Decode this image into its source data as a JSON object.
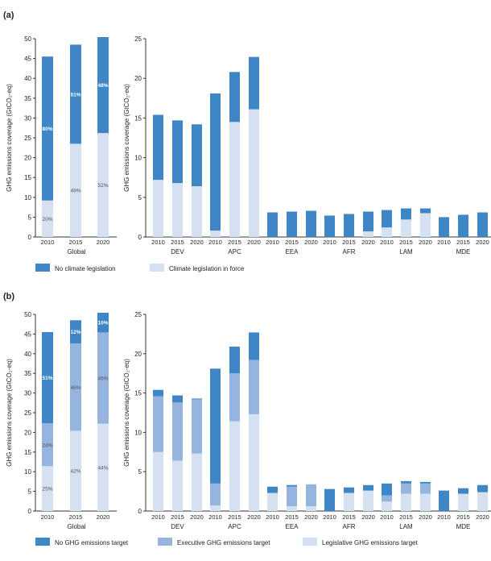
{
  "colors": {
    "dark": "#3f86c6",
    "mid": "#95b5de",
    "light": "#d5e0f1",
    "axis": "#333333",
    "text": "#222222"
  },
  "chart_data": [
    {
      "panel_label": "(a)",
      "type": "bar",
      "stacked": true,
      "ylabel": "GHG emissions coverage (GtCO₂-eq)",
      "legend": [
        {
          "name": "No climate legislation",
          "color": "dark"
        },
        {
          "name": "Climate legislation in force",
          "color": "light"
        }
      ],
      "global": {
        "group_label": "Global",
        "ylim": [
          0,
          50
        ],
        "yticks": [
          0,
          5,
          10,
          15,
          20,
          25,
          30,
          35,
          40,
          45,
          50
        ],
        "years": [
          "2010",
          "2015",
          "2020"
        ],
        "stacks": [
          [
            {
              "v": 9.2,
              "c": "light",
              "label": "20%"
            },
            {
              "v": 36.3,
              "c": "dark",
              "label": "80%"
            }
          ],
          [
            {
              "v": 23.5,
              "c": "light",
              "label": "49%"
            },
            {
              "v": 25.0,
              "c": "dark",
              "label": "51%"
            }
          ],
          [
            {
              "v": 26.2,
              "c": "light",
              "label": "52%"
            },
            {
              "v": 24.2,
              "c": "dark",
              "label": "48%"
            }
          ]
        ]
      },
      "regional": {
        "ylim": [
          0,
          25
        ],
        "yticks": [
          0,
          5,
          10,
          15,
          20,
          25
        ],
        "regions": [
          {
            "name": "DEV",
            "years": [
              "2010",
              "2015",
              "2020"
            ],
            "stacks": [
              [
                {
                  "v": 7.2,
                  "c": "light"
                },
                {
                  "v": 8.2,
                  "c": "dark"
                }
              ],
              [
                {
                  "v": 6.8,
                  "c": "light"
                },
                {
                  "v": 7.9,
                  "c": "dark"
                }
              ],
              [
                {
                  "v": 6.4,
                  "c": "light"
                },
                {
                  "v": 7.8,
                  "c": "dark"
                }
              ]
            ]
          },
          {
            "name": "APC",
            "years": [
              "2010",
              "2015",
              "2020"
            ],
            "stacks": [
              [
                {
                  "v": 0.8,
                  "c": "light"
                },
                {
                  "v": 17.3,
                  "c": "dark"
                }
              ],
              [
                {
                  "v": 14.5,
                  "c": "light"
                },
                {
                  "v": 6.3,
                  "c": "dark"
                }
              ],
              [
                {
                  "v": 16.1,
                  "c": "light"
                },
                {
                  "v": 6.6,
                  "c": "dark"
                }
              ]
            ]
          },
          {
            "name": "EEA",
            "years": [
              "2010",
              "2015",
              "2020"
            ],
            "stacks": [
              [
                {
                  "v": 3.1,
                  "c": "dark"
                }
              ],
              [
                {
                  "v": 3.2,
                  "c": "dark"
                }
              ],
              [
                {
                  "v": 3.3,
                  "c": "dark"
                }
              ]
            ]
          },
          {
            "name": "AFR",
            "years": [
              "2010",
              "2015",
              "2020"
            ],
            "stacks": [
              [
                {
                  "v": 2.7,
                  "c": "dark"
                }
              ],
              [
                {
                  "v": 2.9,
                  "c": "dark"
                }
              ],
              [
                {
                  "v": 0.7,
                  "c": "light"
                },
                {
                  "v": 2.5,
                  "c": "dark"
                }
              ]
            ]
          },
          {
            "name": "LAM",
            "years": [
              "2010",
              "2015",
              "2020"
            ],
            "stacks": [
              [
                {
                  "v": 1.2,
                  "c": "light"
                },
                {
                  "v": 2.2,
                  "c": "dark"
                }
              ],
              [
                {
                  "v": 2.2,
                  "c": "light"
                },
                {
                  "v": 1.4,
                  "c": "dark"
                }
              ],
              [
                {
                  "v": 3.0,
                  "c": "light"
                },
                {
                  "v": 0.6,
                  "c": "dark"
                }
              ]
            ]
          },
          {
            "name": "MDE",
            "years": [
              "2010",
              "2015",
              "2020"
            ],
            "stacks": [
              [
                {
                  "v": 2.5,
                  "c": "dark"
                }
              ],
              [
                {
                  "v": 2.8,
                  "c": "dark"
                }
              ],
              [
                {
                  "v": 3.1,
                  "c": "dark"
                }
              ]
            ]
          }
        ]
      }
    },
    {
      "panel_label": "(b)",
      "type": "bar",
      "stacked": true,
      "ylabel": "GHG emissions coverage (GtCO₂-eq)",
      "legend": [
        {
          "name": "No GHG emissions target",
          "color": "dark"
        },
        {
          "name": "Executive GHG emissions target",
          "color": "mid"
        },
        {
          "name": "Legislative GHG emissions target",
          "color": "light"
        }
      ],
      "global": {
        "group_label": "Global",
        "ylim": [
          0,
          50
        ],
        "yticks": [
          0,
          5,
          10,
          15,
          20,
          25,
          30,
          35,
          40,
          45,
          50
        ],
        "years": [
          "2010",
          "2015",
          "2020"
        ],
        "stacks": [
          [
            {
              "v": 11.4,
              "c": "light",
              "label": "25%"
            },
            {
              "v": 10.9,
              "c": "mid",
              "label": "24%"
            },
            {
              "v": 23.2,
              "c": "dark",
              "label": "51%"
            }
          ],
          [
            {
              "v": 20.4,
              "c": "light",
              "label": "42%"
            },
            {
              "v": 22.2,
              "c": "mid",
              "label": "46%"
            },
            {
              "v": 5.9,
              "c": "dark",
              "label": "12%"
            }
          ],
          [
            {
              "v": 22.2,
              "c": "light",
              "label": "44%"
            },
            {
              "v": 23.2,
              "c": "mid",
              "label": "46%"
            },
            {
              "v": 5.0,
              "c": "dark",
              "label": "10%"
            }
          ]
        ]
      },
      "regional": {
        "ylim": [
          0,
          25
        ],
        "yticks": [
          0,
          5,
          10,
          15,
          20,
          25
        ],
        "regions": [
          {
            "name": "DEV",
            "years": [
              "2010",
              "2015",
              "2020"
            ],
            "stacks": [
              [
                {
                  "v": 7.5,
                  "c": "light"
                },
                {
                  "v": 7.1,
                  "c": "mid"
                },
                {
                  "v": 0.8,
                  "c": "dark"
                }
              ],
              [
                {
                  "v": 6.4,
                  "c": "light"
                },
                {
                  "v": 7.4,
                  "c": "mid"
                },
                {
                  "v": 0.9,
                  "c": "dark"
                }
              ],
              [
                {
                  "v": 7.3,
                  "c": "light"
                },
                {
                  "v": 6.9,
                  "c": "mid"
                },
                {
                  "v": 0.1,
                  "c": "dark"
                }
              ]
            ]
          },
          {
            "name": "APC",
            "years": [
              "2010",
              "2015",
              "2020"
            ],
            "stacks": [
              [
                {
                  "v": 0.7,
                  "c": "light"
                },
                {
                  "v": 2.8,
                  "c": "mid"
                },
                {
                  "v": 14.6,
                  "c": "dark"
                }
              ],
              [
                {
                  "v": 11.4,
                  "c": "light"
                },
                {
                  "v": 6.1,
                  "c": "mid"
                },
                {
                  "v": 3.4,
                  "c": "dark"
                }
              ],
              [
                {
                  "v": 12.3,
                  "c": "light"
                },
                {
                  "v": 6.9,
                  "c": "mid"
                },
                {
                  "v": 3.5,
                  "c": "dark"
                }
              ]
            ]
          },
          {
            "name": "EEA",
            "years": [
              "2010",
              "2015",
              "2020"
            ],
            "stacks": [
              [
                {
                  "v": 2.3,
                  "c": "light"
                },
                {
                  "v": 0.8,
                  "c": "dark"
                }
              ],
              [
                {
                  "v": 0.6,
                  "c": "light"
                },
                {
                  "v": 2.5,
                  "c": "mid"
                },
                {
                  "v": 0.2,
                  "c": "dark"
                }
              ],
              [
                {
                  "v": 0.6,
                  "c": "light"
                },
                {
                  "v": 2.8,
                  "c": "mid"
                }
              ]
            ]
          },
          {
            "name": "AFR",
            "years": [
              "2010",
              "2015",
              "2020"
            ],
            "stacks": [
              [
                {
                  "v": 2.8,
                  "c": "dark"
                }
              ],
              [
                {
                  "v": 2.3,
                  "c": "light"
                },
                {
                  "v": 0.7,
                  "c": "dark"
                }
              ],
              [
                {
                  "v": 2.6,
                  "c": "light"
                },
                {
                  "v": 0.7,
                  "c": "dark"
                }
              ]
            ]
          },
          {
            "name": "LAM",
            "years": [
              "2010",
              "2015",
              "2020"
            ],
            "stacks": [
              [
                {
                  "v": 1.2,
                  "c": "light"
                },
                {
                  "v": 0.8,
                  "c": "mid"
                },
                {
                  "v": 1.5,
                  "c": "dark"
                }
              ],
              [
                {
                  "v": 2.2,
                  "c": "light"
                },
                {
                  "v": 1.3,
                  "c": "mid"
                },
                {
                  "v": 0.3,
                  "c": "dark"
                }
              ],
              [
                {
                  "v": 2.2,
                  "c": "light"
                },
                {
                  "v": 1.3,
                  "c": "mid"
                },
                {
                  "v": 0.2,
                  "c": "dark"
                }
              ]
            ]
          },
          {
            "name": "MDE",
            "years": [
              "2010",
              "2015",
              "2020"
            ],
            "stacks": [
              [
                {
                  "v": 2.6,
                  "c": "dark"
                }
              ],
              [
                {
                  "v": 2.2,
                  "c": "light"
                },
                {
                  "v": 0.7,
                  "c": "dark"
                }
              ],
              [
                {
                  "v": 2.4,
                  "c": "light"
                },
                {
                  "v": 0.9,
                  "c": "dark"
                }
              ]
            ]
          }
        ]
      }
    }
  ]
}
